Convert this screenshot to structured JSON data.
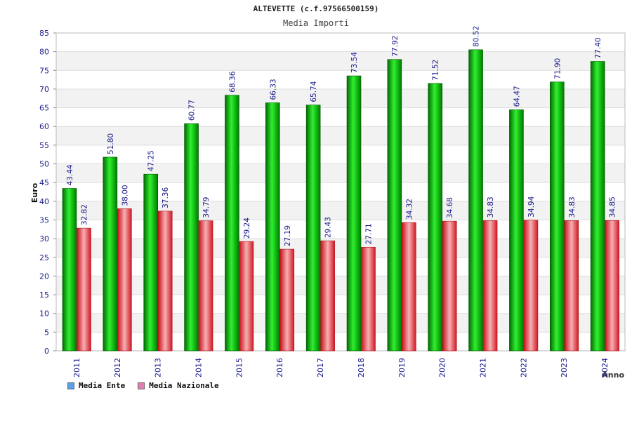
{
  "title": "ALTEVETTE (c.f.97566500159)",
  "subtitle": "Media Importi",
  "chart_data": {
    "type": "bar",
    "categories": [
      "2011",
      "2012",
      "2013",
      "2014",
      "2015",
      "2016",
      "2017",
      "2018",
      "2019",
      "2020",
      "2021",
      "2022",
      "2023",
      "2024"
    ],
    "series": [
      {
        "name": "Media Ente",
        "color": "#00aa00",
        "values": [
          43.44,
          51.8,
          47.25,
          60.77,
          68.36,
          66.33,
          65.74,
          73.54,
          77.92,
          71.52,
          80.52,
          64.47,
          71.9,
          77.4
        ]
      },
      {
        "name": "Media Nazionale",
        "color": "#e8202a",
        "values": [
          32.82,
          38.0,
          37.36,
          34.79,
          29.24,
          27.19,
          29.43,
          27.71,
          34.32,
          34.68,
          34.83,
          34.94,
          34.83,
          34.85
        ]
      }
    ],
    "value_labels": [
      [
        "43.44",
        "51.80",
        "47.25",
        "60.77",
        "68.36",
        "66.33",
        "65.74",
        "73.54",
        "77.92",
        "71.52",
        "80.52",
        "64.47",
        "71.90",
        "77.40"
      ],
      [
        "32.82",
        "38.00",
        "37.36",
        "34.79",
        "29.24",
        "27.19",
        "29.43",
        "27.71",
        "34.32",
        "34.68",
        "34.83",
        "34.94",
        "34.83",
        "34.85"
      ]
    ],
    "ylabel": "Euro",
    "xlabel": "Anno",
    "ylim": [
      0,
      85
    ],
    "yticks": [
      0,
      5,
      10,
      15,
      20,
      25,
      30,
      35,
      40,
      45,
      50,
      55,
      60,
      65,
      70,
      75,
      80,
      85
    ],
    "grid": true,
    "legend_position": "bottom-left"
  },
  "legend": [
    {
      "label": "Media Ente",
      "color": "#5aa0e8"
    },
    {
      "label": "Media Nazionale",
      "color": "#e080b0"
    }
  ]
}
